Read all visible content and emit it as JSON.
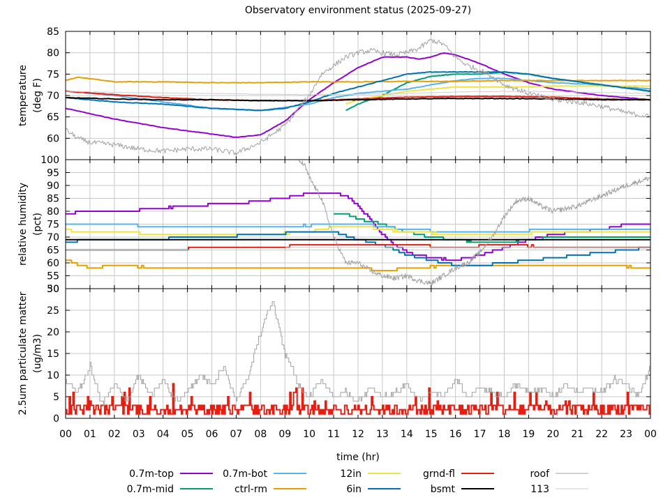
{
  "chart_data": [
    {
      "type": "line",
      "panel": "temperature",
      "title": "Observatory environment status (2025-09-27)",
      "ylabel": "temperature (deg F)",
      "ylim": [
        55,
        85
      ],
      "yticks": [
        60,
        65,
        70,
        75,
        80,
        85
      ],
      "xlim": [
        0,
        24
      ],
      "grid": true,
      "series": [
        {
          "name": "0.7m-top",
          "color": "#9400d3",
          "x": [
            0,
            2,
            4,
            6,
            7,
            8,
            9,
            10,
            11,
            12,
            13,
            14,
            14.5,
            15,
            15.5,
            16,
            17,
            18,
            19,
            20,
            22,
            24
          ],
          "values": [
            67,
            64.5,
            62.5,
            61,
            60.2,
            60.8,
            64,
            69,
            73,
            76.5,
            79,
            79,
            78.5,
            79,
            80,
            79.5,
            77.5,
            75,
            73,
            71.5,
            70,
            69
          ]
        },
        {
          "name": "0.7m-mid",
          "color": "#009e73",
          "x": [
            11.5,
            12,
            13,
            14,
            15,
            16,
            17,
            18,
            19,
            20,
            22,
            24
          ],
          "values": [
            66.5,
            68,
            70,
            73,
            74.5,
            75,
            75,
            75.5,
            75,
            74,
            72.5,
            71
          ]
        },
        {
          "name": "0.7m-bot",
          "color": "#56b4e9",
          "x": [
            0,
            2,
            4,
            6,
            8,
            10,
            11,
            12,
            13,
            14,
            15,
            16,
            17,
            18,
            19,
            20,
            22,
            24
          ],
          "values": [
            71,
            70,
            68.5,
            67,
            66.5,
            68,
            69.5,
            70.5,
            71,
            71.5,
            72.5,
            73.5,
            74,
            74,
            73.5,
            73,
            72.5,
            71.5
          ]
        },
        {
          "name": "ctrl-rm",
          "color": "#e69f00",
          "x": [
            0,
            0.5,
            2,
            4,
            6,
            8,
            10,
            12,
            14,
            16,
            18,
            20,
            22,
            24
          ],
          "values": [
            73.5,
            74.3,
            73.2,
            73.2,
            73,
            73,
            73.2,
            73.2,
            73.3,
            73.3,
            73.5,
            73.5,
            73.5,
            73.5
          ]
        },
        {
          "name": "12in",
          "color": "#f0e442",
          "x": [
            11.5,
            12,
            13,
            14,
            15,
            16,
            17,
            18,
            19,
            20,
            22,
            24
          ],
          "values": [
            68,
            69,
            70,
            71,
            71.5,
            72,
            72,
            72,
            72,
            72.2,
            72.2,
            72.2
          ]
        },
        {
          "name": "6in",
          "color": "#0072b2",
          "x": [
            0,
            2,
            4,
            6,
            8,
            9,
            10,
            11,
            12,
            13,
            14,
            15,
            16,
            17,
            18,
            19,
            20,
            22,
            24
          ],
          "values": [
            69.5,
            68.5,
            68,
            67,
            66.5,
            67,
            68.5,
            70.5,
            72,
            73.5,
            75,
            75.5,
            75.5,
            75.5,
            75.5,
            75,
            74,
            72.5,
            71
          ]
        },
        {
          "name": "grnd-fl",
          "color": "#e51e10",
          "x": [
            0,
            2,
            4,
            6,
            8,
            10,
            12,
            14,
            16,
            18,
            20,
            22,
            24
          ],
          "values": [
            71,
            70.2,
            69.5,
            69,
            68.8,
            68.8,
            69.2,
            69.6,
            69.8,
            69.8,
            69.6,
            69.2,
            69
          ]
        },
        {
          "name": "bsmt",
          "color": "#000000",
          "x": [
            0,
            2,
            4,
            6,
            8,
            10,
            12,
            14,
            16,
            18,
            20,
            22,
            24
          ],
          "values": [
            69.5,
            69.2,
            69,
            69,
            68.8,
            68.8,
            69,
            69.2,
            69.3,
            69.3,
            69.2,
            69,
            69
          ]
        },
        {
          "name": "roof",
          "color": "#a0a0a0",
          "x": [
            0,
            0.5,
            1,
            2,
            3,
            4,
            5,
            6,
            7,
            8,
            9,
            10,
            10.5,
            11,
            11.5,
            12,
            12.5,
            13,
            13.5,
            14,
            14.5,
            15,
            15.5,
            16,
            16.5,
            17,
            17.5,
            18,
            19,
            20,
            21,
            22,
            23,
            24
          ],
          "values": [
            62,
            60,
            59,
            58.5,
            57.5,
            57,
            57.5,
            57.5,
            56.5,
            59,
            63,
            70,
            75,
            77,
            79,
            80,
            80.5,
            80,
            79.5,
            80,
            81,
            83,
            82,
            79,
            77,
            76,
            74.5,
            72.5,
            70.5,
            69,
            68.5,
            67.5,
            66,
            65
          ]
        },
        {
          "name": "113",
          "color": "#cccccc",
          "x": [
            0,
            2,
            4,
            6,
            8,
            10,
            12,
            14,
            16,
            18,
            20,
            22,
            24
          ],
          "values": [
            71,
            70.7,
            70.6,
            70.5,
            70.3,
            70.2,
            70.3,
            70.5,
            70.8,
            71,
            70.9,
            70.7,
            70.5
          ]
        }
      ]
    },
    {
      "type": "line",
      "panel": "humidity",
      "ylabel": "relative humidity (pct)",
      "ylim": [
        50,
        100
      ],
      "yticks": [
        50,
        55,
        60,
        65,
        70,
        75,
        80,
        85,
        90,
        95,
        100
      ],
      "xlim": [
        0,
        24
      ],
      "grid": true,
      "series": [
        {
          "name": "0.7m-top",
          "color": "#9400d3",
          "x": [
            0,
            0.8,
            2.5,
            3.5,
            5,
            7,
            8,
            8.7,
            9.5,
            10,
            11,
            11.5,
            12,
            13,
            13.5,
            14,
            15,
            16,
            17,
            18,
            19,
            20,
            22,
            23,
            24
          ],
          "values": [
            79,
            80,
            80,
            81,
            82,
            83,
            84,
            85,
            86,
            87,
            87,
            86,
            82,
            71,
            67,
            64,
            62,
            61,
            63,
            66,
            69,
            71,
            73,
            75,
            75
          ]
        },
        {
          "name": "0.7m-mid",
          "color": "#009e73",
          "x": [
            11,
            11.5,
            12,
            13,
            14,
            15,
            16,
            17,
            18,
            19,
            20,
            22,
            24
          ],
          "values": [
            79,
            79,
            77,
            75,
            72,
            70,
            69,
            68,
            68,
            69,
            70,
            70,
            70
          ]
        },
        {
          "name": "0.7m-bot",
          "color": "#56b4e9",
          "x": [
            0,
            2,
            4,
            6,
            8,
            10,
            11,
            12,
            13,
            14,
            16,
            18,
            20,
            22,
            24
          ],
          "values": [
            75,
            75,
            74,
            74,
            74,
            74.5,
            75,
            75,
            74,
            73,
            72,
            72,
            73,
            73,
            73
          ]
        },
        {
          "name": "ctrl-rm",
          "color": "#e69f00",
          "x": [
            0,
            0.3,
            1,
            2,
            4,
            6,
            8,
            10,
            12,
            13,
            14,
            16,
            18,
            20,
            22,
            24
          ],
          "values": [
            61,
            60,
            58,
            59,
            58,
            58,
            58,
            58,
            58,
            57,
            58,
            59,
            59,
            59,
            59,
            58
          ]
        },
        {
          "name": "12in",
          "color": "#f0e442",
          "x": [
            0,
            0.5,
            1,
            2,
            4,
            6,
            8,
            10,
            11,
            12,
            13,
            14,
            16,
            17,
            18,
            20,
            22,
            24
          ],
          "values": [
            73,
            72,
            72,
            72,
            71,
            71,
            71,
            72,
            74,
            74,
            73,
            72,
            71,
            71,
            71,
            72,
            72,
            72
          ]
        },
        {
          "name": "6in",
          "color": "#0072b2",
          "x": [
            0,
            1,
            2,
            3,
            4,
            4.5,
            6,
            8,
            10,
            11,
            12,
            13,
            14,
            15,
            16,
            17,
            18,
            19,
            20,
            22,
            23,
            24
          ],
          "values": [
            68,
            69,
            69,
            69,
            69,
            70,
            70,
            71,
            72,
            72,
            69,
            67,
            63,
            61,
            59,
            59,
            60,
            61,
            62,
            64,
            65,
            66
          ]
        },
        {
          "name": "grnd-fl",
          "color": "#e51e10",
          "x": [
            0,
            2,
            4,
            6,
            8,
            10,
            12,
            14,
            16,
            18,
            20,
            22,
            24
          ],
          "values": [
            65,
            65,
            65,
            66,
            66,
            67,
            67,
            67,
            66,
            67,
            66,
            66,
            66
          ]
        },
        {
          "name": "bsmt",
          "color": "#000000",
          "x": [
            0,
            24
          ],
          "values": [
            69,
            69
          ]
        },
        {
          "name": "roof",
          "color": "#a0a0a0",
          "x": [
            9.5,
            9.8,
            10,
            10.5,
            11,
            11.5,
            12,
            12.5,
            13,
            13.5,
            14,
            14.5,
            15,
            15.5,
            16,
            16.5,
            17,
            17.5,
            18,
            18.5,
            19,
            19.5,
            20,
            21,
            22,
            23,
            24
          ],
          "values": [
            100,
            98,
            93,
            85,
            70,
            60,
            60,
            57,
            55,
            54,
            55,
            53,
            52,
            55,
            58,
            60,
            64,
            70,
            78,
            84,
            85,
            82,
            80,
            82,
            86,
            90,
            93
          ]
        },
        {
          "name": "113",
          "color": "#cccccc",
          "x": [
            0,
            2,
            4,
            6,
            8,
            10,
            12,
            14,
            16,
            18,
            20,
            22,
            24
          ],
          "values": [
            65,
            65,
            65,
            65,
            65,
            66,
            66,
            66,
            66,
            66,
            66,
            66,
            66
          ]
        }
      ]
    },
    {
      "type": "line",
      "panel": "particulate",
      "ylabel": "2.5um particulate matter (ug/m3)",
      "xlabel": "time (hr)",
      "ylim": [
        0,
        30
      ],
      "yticks": [
        0,
        5,
        10,
        15,
        20,
        25,
        30
      ],
      "xlim": [
        0,
        24
      ],
      "xticks": [
        "00",
        "01",
        "02",
        "03",
        "04",
        "05",
        "06",
        "07",
        "08",
        "09",
        "10",
        "11",
        "12",
        "13",
        "14",
        "15",
        "16",
        "17",
        "18",
        "19",
        "20",
        "21",
        "22",
        "23",
        "00"
      ],
      "grid": true,
      "series": [
        {
          "name": "grnd-fl",
          "color": "#e51e10",
          "pattern": "noise",
          "baseline": 2,
          "amplitude": 2
        },
        {
          "name": "roof",
          "color": "#a0a0a0",
          "x": [
            0,
            0.5,
            1,
            1.5,
            2,
            2.5,
            3,
            3.5,
            4,
            4.5,
            5,
            5.5,
            6,
            6.5,
            7,
            7.5,
            7.8,
            8,
            8.3,
            8.5,
            8.7,
            9,
            9.3,
            9.5,
            10,
            10.5,
            11,
            11.5,
            12,
            12.5,
            13,
            13.5,
            14,
            14.5,
            15,
            15.5,
            16,
            16.5,
            17,
            17.5,
            18,
            18.5,
            19,
            19.5,
            20,
            20.5,
            21,
            21.5,
            22,
            22.5,
            23,
            23.5,
            24
          ],
          "values": [
            9,
            6,
            12,
            3,
            8,
            4,
            10,
            5,
            9,
            4,
            6,
            10,
            8,
            12,
            4,
            10,
            16,
            20,
            25,
            27,
            22,
            15,
            12,
            8,
            5,
            9,
            5,
            6,
            4,
            7,
            5,
            6,
            8,
            4,
            6,
            5,
            9,
            5,
            7,
            6,
            5,
            8,
            6,
            7,
            5,
            8,
            6,
            7,
            6,
            9,
            8,
            5,
            12
          ]
        }
      ]
    }
  ],
  "legend": [
    {
      "name": "0.7m-top",
      "color": "#9400d3"
    },
    {
      "name": "0.7m-mid",
      "color": "#009e73"
    },
    {
      "name": "0.7m-bot",
      "color": "#56b4e9"
    },
    {
      "name": "ctrl-rm",
      "color": "#e69f00"
    },
    {
      "name": "12in",
      "color": "#f0e442"
    },
    {
      "name": "6in",
      "color": "#0072b2"
    },
    {
      "name": "grnd-fl",
      "color": "#e51e10"
    },
    {
      "name": "bsmt",
      "color": "#000000"
    },
    {
      "name": "roof",
      "color": "#a0a0a0"
    },
    {
      "name": "113",
      "color": "#cccccc"
    }
  ]
}
